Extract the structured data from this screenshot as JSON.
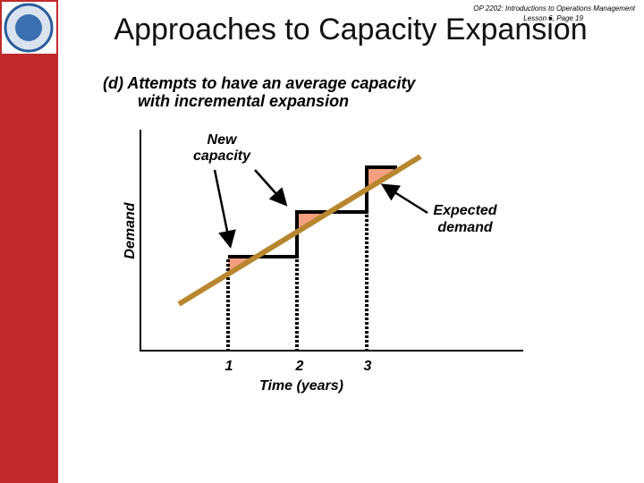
{
  "header": {
    "course": "OP 2202: Introductions to Operations Management",
    "page": "Lesson 6, Page 19",
    "title": "Approaches to Capacity Expansion"
  },
  "subtitle": {
    "line1": "(d)  Attempts to have an average capacity",
    "line2": "with incremental expansion"
  },
  "diagram": {
    "y_axis_label": "Demand",
    "x_axis_label": "Time (years)",
    "x_labels": [
      "1",
      "2",
      "3"
    ],
    "new_capacity": [
      "New",
      "capacity"
    ],
    "expected_demand": [
      "Expected",
      "demand"
    ]
  }
}
